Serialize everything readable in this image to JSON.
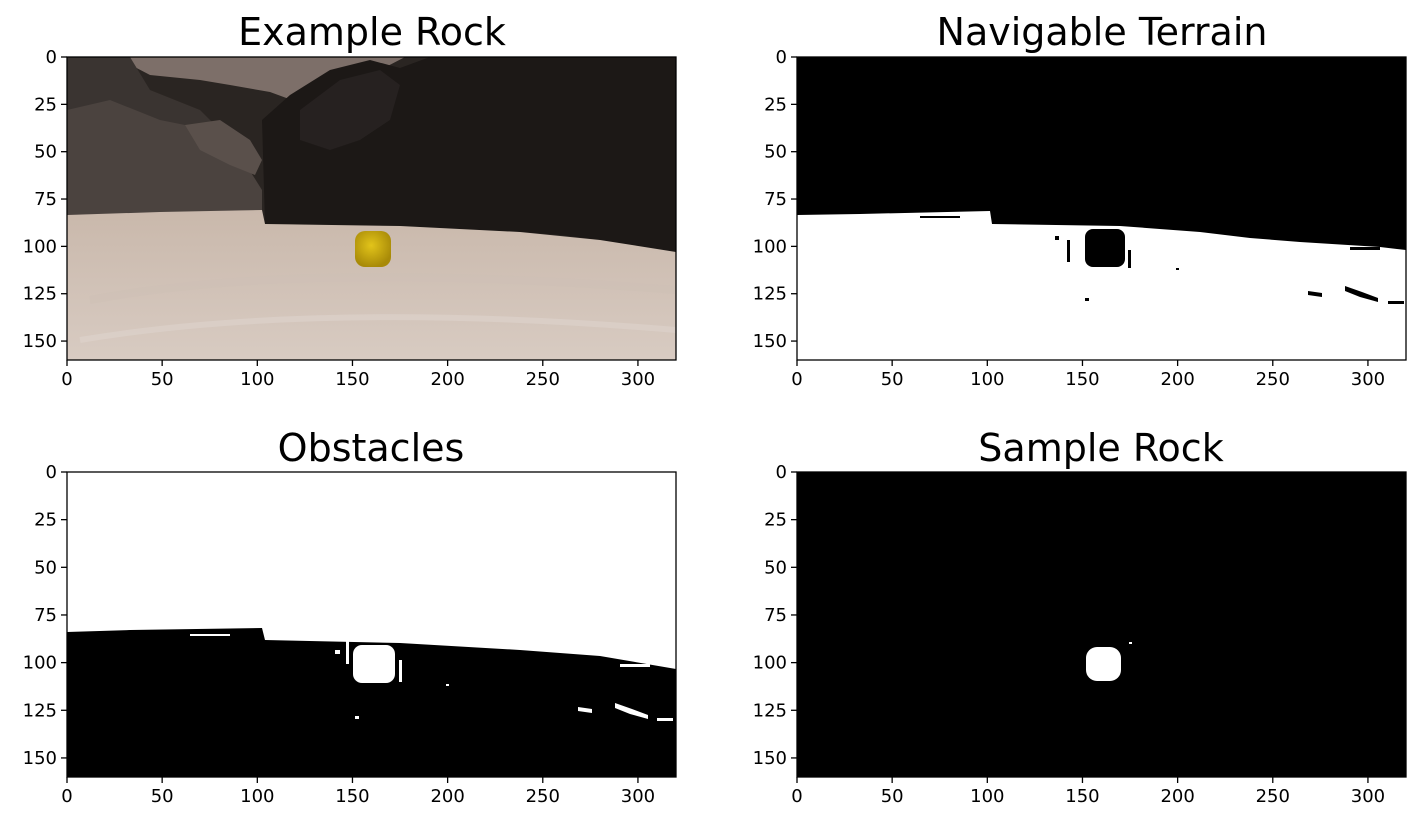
{
  "chart_data": [
    {
      "type": "image",
      "title": "Example Rock",
      "image": "rgb-camera-view-with-yellow-rock",
      "xlim": [
        0,
        320
      ],
      "ylim": [
        160,
        0
      ],
      "xticks": [
        0,
        50,
        100,
        150,
        200,
        250,
        300
      ],
      "yticks": [
        0,
        25,
        50,
        75,
        100,
        125,
        150
      ],
      "grid": false
    },
    {
      "type": "image",
      "title": "Navigable Terrain",
      "image": "binary-mask-navigable",
      "xlim": [
        0,
        320
      ],
      "ylim": [
        160,
        0
      ],
      "xticks": [
        0,
        50,
        100,
        150,
        200,
        250,
        300
      ],
      "yticks": [
        0,
        25,
        50,
        75,
        100,
        125,
        150
      ],
      "grid": false
    },
    {
      "type": "image",
      "title": "Obstacles",
      "image": "binary-mask-obstacles",
      "xlim": [
        0,
        320
      ],
      "ylim": [
        160,
        0
      ],
      "xticks": [
        0,
        50,
        100,
        150,
        200,
        250,
        300
      ],
      "yticks": [
        0,
        25,
        50,
        75,
        100,
        125,
        150
      ],
      "grid": false
    },
    {
      "type": "image",
      "title": "Sample Rock",
      "image": "binary-mask-rock",
      "xlim": [
        0,
        320
      ],
      "ylim": [
        160,
        0
      ],
      "xticks": [
        0,
        50,
        100,
        150,
        200,
        250,
        300
      ],
      "yticks": [
        0,
        25,
        50,
        75,
        100,
        125,
        150
      ],
      "grid": false
    }
  ]
}
